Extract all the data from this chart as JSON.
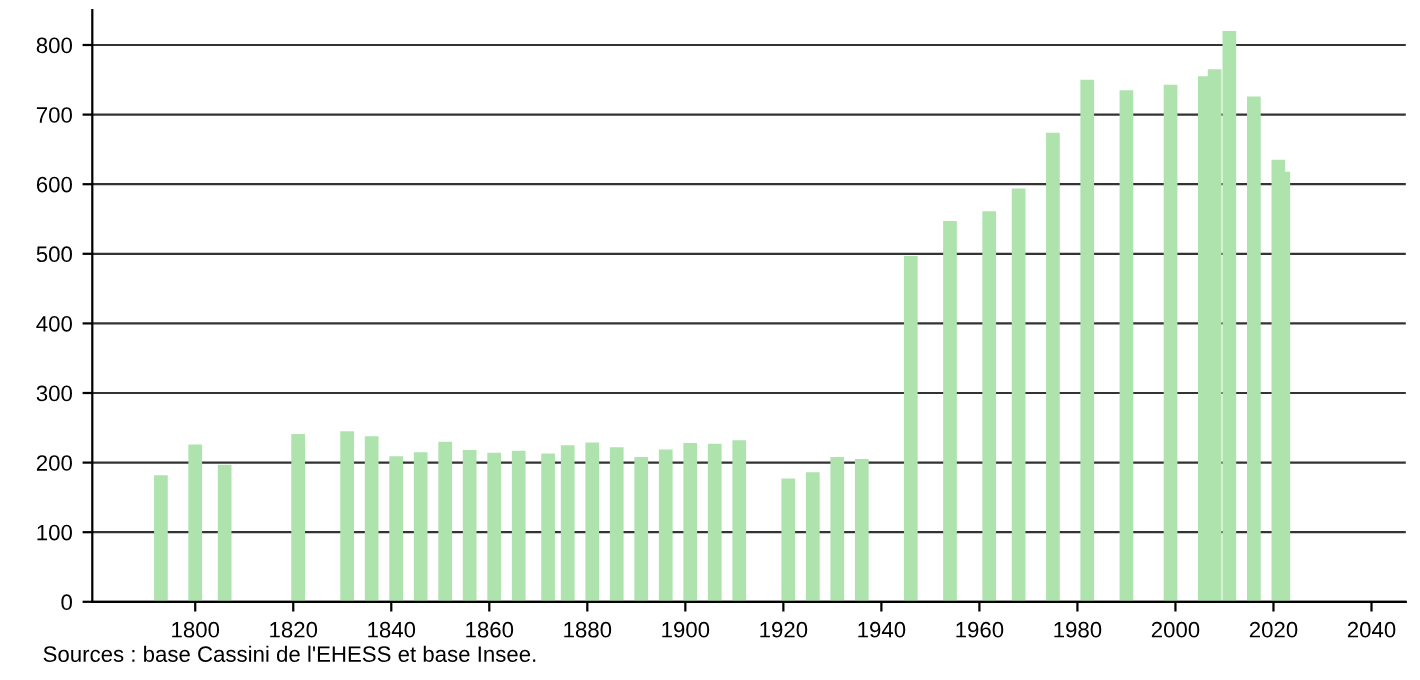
{
  "chart_data": {
    "type": "bar",
    "x": [
      1793,
      1800,
      1806,
      1821,
      1831,
      1836,
      1841,
      1846,
      1851,
      1856,
      1861,
      1866,
      1872,
      1876,
      1881,
      1886,
      1891,
      1896,
      1901,
      1906,
      1911,
      1921,
      1926,
      1931,
      1936,
      1946,
      1954,
      1962,
      1968,
      1975,
      1982,
      1990,
      1999,
      2006,
      2008,
      2011,
      2016,
      2021,
      2022
    ],
    "values": [
      182,
      226,
      197,
      241,
      245,
      238,
      209,
      215,
      230,
      218,
      214,
      217,
      213,
      225,
      229,
      222,
      208,
      219,
      228,
      227,
      232,
      177,
      186,
      208,
      205,
      497,
      547,
      561,
      594,
      674,
      750,
      735,
      743,
      755,
      765,
      820,
      726,
      635,
      618
    ],
    "color": "#aee3ae",
    "xlim": [
      1779,
      2047
    ],
    "xticks": [
      1800,
      1820,
      1840,
      1860,
      1880,
      1900,
      1920,
      1940,
      1960,
      1980,
      2000,
      2020,
      2040
    ],
    "ylim": [
      0,
      850
    ],
    "yticks": [
      0,
      100,
      200,
      300,
      400,
      500,
      600,
      700,
      800
    ],
    "grid": "y",
    "annotations": [
      "Sources : base Cassini de l'EHESS et base Insee."
    ]
  }
}
